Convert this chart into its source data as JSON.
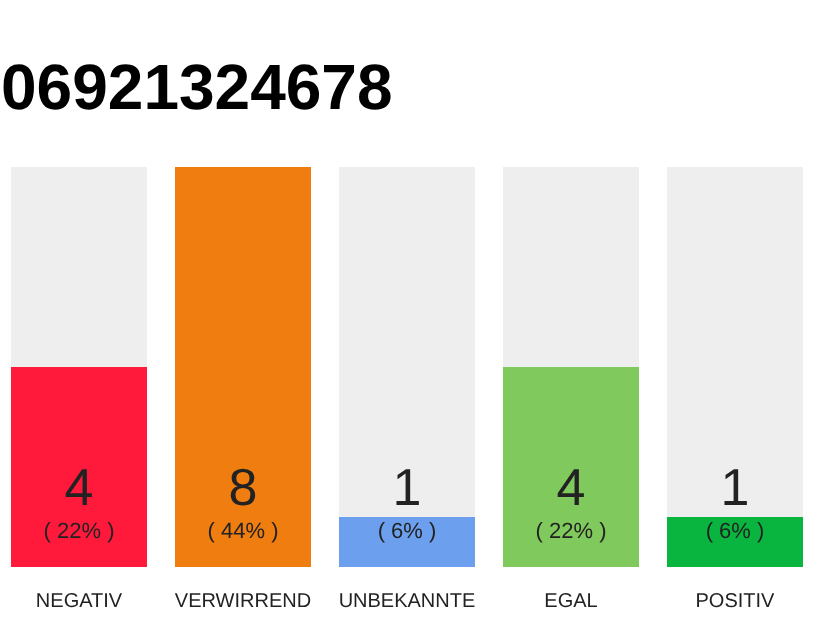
{
  "chart_data": {
    "type": "bar",
    "title": "06921324678",
    "categories": [
      "NEGATIV",
      "VERWIRREND",
      "UNBEKANNTE",
      "EGAL",
      "POSITIV"
    ],
    "values": [
      4,
      8,
      1,
      4,
      1
    ],
    "colors": [
      "#ff1a3c",
      "#f07d0f",
      "#6ca0ee",
      "#80c95c",
      "#0ab53f"
    ],
    "data_labels": true,
    "annotations": [
      "( 22% )",
      "( 44% )",
      "( 6% )",
      "( 22% )",
      "( 6% )"
    ]
  }
}
